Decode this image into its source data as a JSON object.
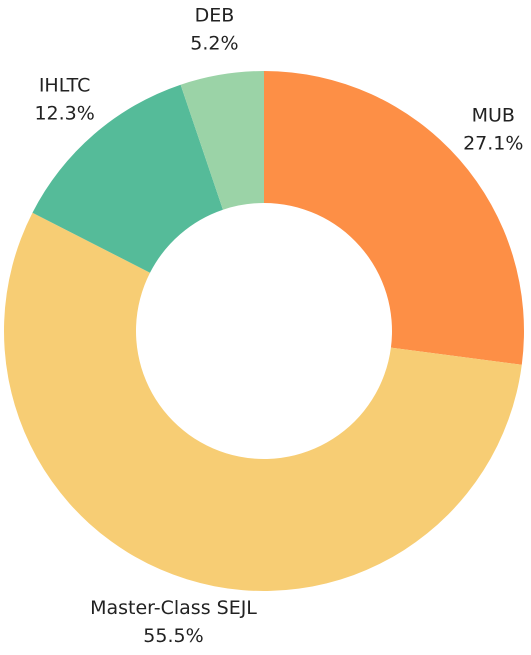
{
  "chart_data": {
    "type": "donut",
    "categories": [
      "MUB",
      "Master-Class SEJL",
      "IHLTC",
      "DEB"
    ],
    "values": [
      27.1,
      55.5,
      12.3,
      5.2
    ],
    "value_labels": [
      "27.1%",
      "55.5%",
      "12.3%",
      "5.2%"
    ],
    "colors": [
      "#fd8f46",
      "#f7cd74",
      "#55bb99",
      "#9bd3a7"
    ]
  }
}
